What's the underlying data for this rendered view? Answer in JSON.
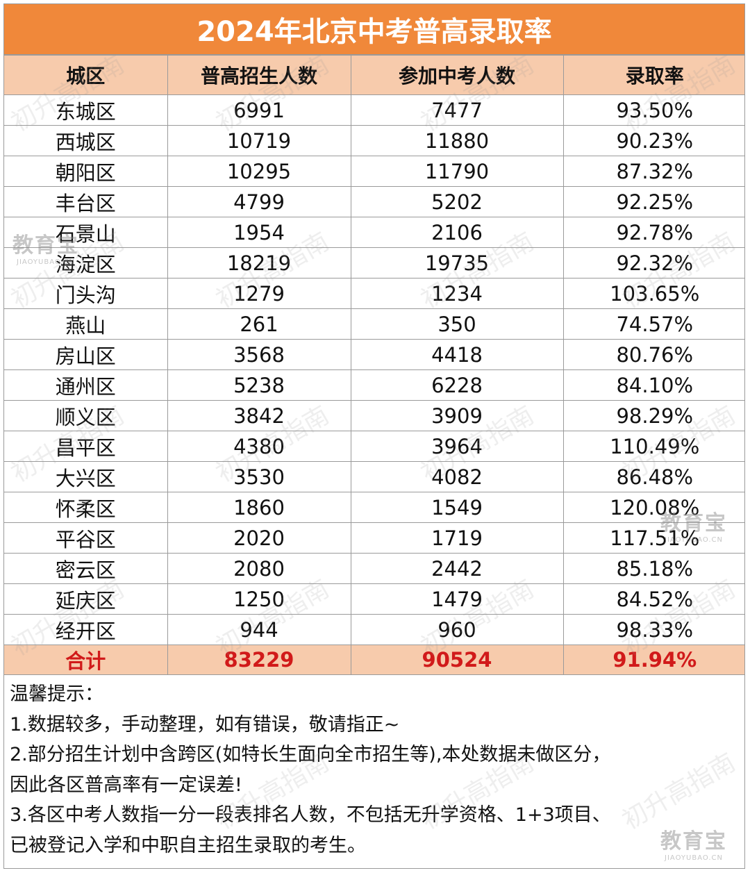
{
  "title": "2024年北京中考普高录取率",
  "headers": [
    "城区",
    "普高招生人数",
    "参加中考人数",
    "录取率"
  ],
  "rows": [
    [
      "东城区",
      "6991",
      "7477",
      "93.50%"
    ],
    [
      "西城区",
      "10719",
      "11880",
      "90.23%"
    ],
    [
      "朝阳区",
      "10295",
      "11790",
      "87.32%"
    ],
    [
      "丰台区",
      "4799",
      "5202",
      "92.25%"
    ],
    [
      "石景山",
      "1954",
      "2106",
      "92.78%"
    ],
    [
      "海淀区",
      "18219",
      "19735",
      "92.32%"
    ],
    [
      "门头沟",
      "1279",
      "1234",
      "103.65%"
    ],
    [
      "燕山",
      "261",
      "350",
      "74.57%"
    ],
    [
      "房山区",
      "3568",
      "4418",
      "80.76%"
    ],
    [
      "通州区",
      "5238",
      "6228",
      "84.10%"
    ],
    [
      "顺义区",
      "3842",
      "3909",
      "98.29%"
    ],
    [
      "昌平区",
      "4380",
      "3964",
      "110.49%"
    ],
    [
      "大兴区",
      "3530",
      "4082",
      "86.48%"
    ],
    [
      "怀柔区",
      "1860",
      "1549",
      "120.08%"
    ],
    [
      "平谷区",
      "2020",
      "1719",
      "117.51%"
    ],
    [
      "密云区",
      "2080",
      "2442",
      "85.18%"
    ],
    [
      "延庆区",
      "1250",
      "1479",
      "84.52%"
    ],
    [
      "经开区",
      "944",
      "960",
      "98.33%"
    ]
  ],
  "total": [
    "合计",
    "83229",
    "90524",
    "91.94%"
  ],
  "notes": {
    "heading": "温馨提示：",
    "lines": [
      "1.数据较多，手动整理，如有错误，敬请指正~",
      "2.部分招生计划中含跨区(如特长生面向全市招生等),本处数据未做区分，",
      "因此各区普高率有一定误差!",
      "3.各区中考人数指一分一段表排名人数，不包括无升学资格、1+3项目、",
      "已被登记入学和中职自主招生录取的考生。"
    ]
  },
  "watermark": {
    "text": "初升高指南",
    "logo_text": "教育宝",
    "logo_url": "JIAOYUBAO.CN"
  }
}
